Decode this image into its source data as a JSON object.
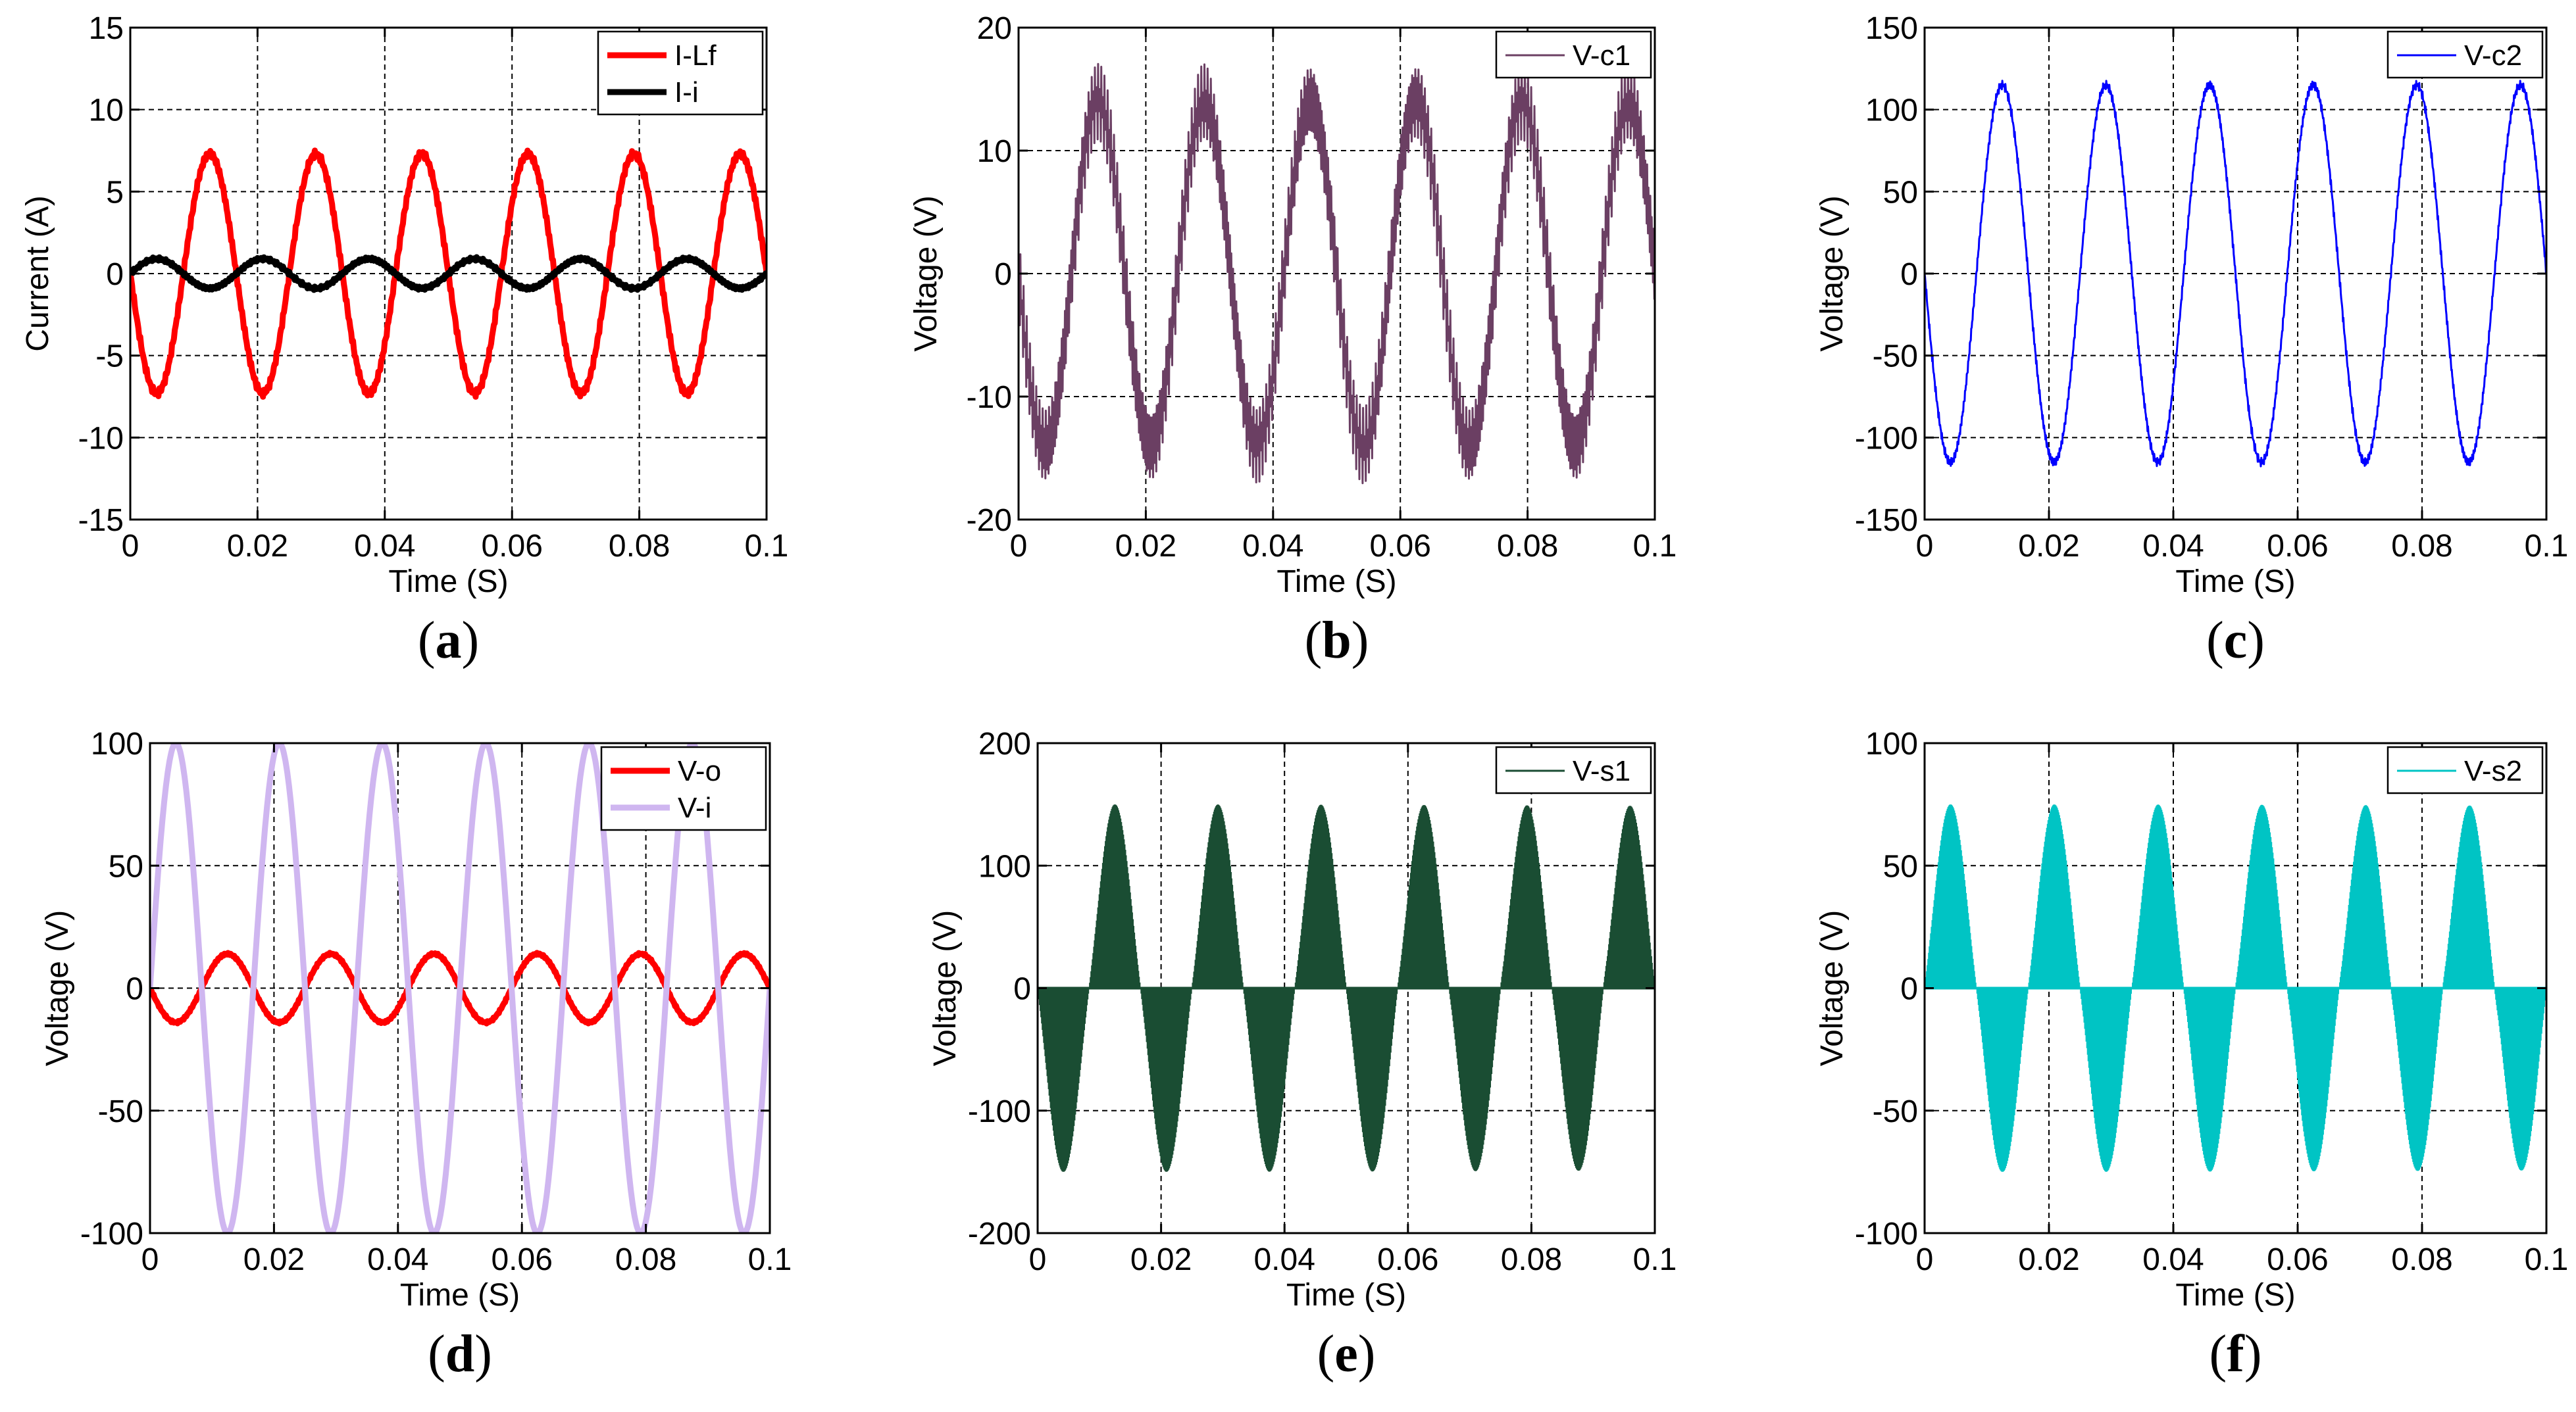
{
  "chart_data": [
    {
      "type": "line",
      "panel_label": "a",
      "xlabel": "Time (S)",
      "ylabel": "Current (A)",
      "xlim": [
        0,
        0.1
      ],
      "ylim": [
        -15,
        15
      ],
      "xticks": [
        0,
        0.02,
        0.04,
        0.06,
        0.08,
        0.1
      ],
      "xtick_labels": [
        "0",
        "0.02",
        "0.04",
        "0.06",
        "0.08",
        "0.1"
      ],
      "yticks": [
        -15,
        -10,
        -5,
        0,
        5,
        10,
        15
      ],
      "ytick_labels": [
        "-15",
        "-10",
        "-5",
        "0",
        "5",
        "10",
        "15"
      ],
      "grid": true,
      "legend_position": "top-right",
      "series": [
        {
          "name": "I-Lf",
          "color": "#ff0000",
          "amplitude": 7.3,
          "frequency_hz": 60,
          "phase_deg": 180,
          "ripple": 0.25
        },
        {
          "name": "I-i",
          "color": "#000000",
          "amplitude": 0.9,
          "frequency_hz": 60,
          "phase_deg": 0,
          "ripple": 0.12
        }
      ]
    },
    {
      "type": "line",
      "panel_label": "b",
      "xlabel": "Time (S)",
      "ylabel": "Voltage (V)",
      "xlim": [
        0,
        0.1
      ],
      "ylim": [
        -20,
        20
      ],
      "xticks": [
        0,
        0.02,
        0.04,
        0.06,
        0.08,
        0.1
      ],
      "xtick_labels": [
        "0",
        "0.02",
        "0.04",
        "0.06",
        "0.08",
        "0.1"
      ],
      "yticks": [
        -20,
        -10,
        0,
        10,
        20
      ],
      "ytick_labels": [
        "-20",
        "-10",
        "0",
        "10",
        "20"
      ],
      "grid": true,
      "legend_position": "top-right",
      "series": [
        {
          "name": "V-c1",
          "color": "#6b3f63",
          "amplitude": 14,
          "frequency_hz": 60,
          "phase_deg": 180,
          "ripple": 3.5
        }
      ]
    },
    {
      "type": "line",
      "panel_label": "c",
      "xlabel": "Time (S)",
      "ylabel": "Voltage (V)",
      "xlim": [
        0,
        0.1
      ],
      "ylim": [
        -150,
        150
      ],
      "xticks": [
        0,
        0.02,
        0.04,
        0.06,
        0.08,
        0.1
      ],
      "xtick_labels": [
        "0",
        "0.02",
        "0.04",
        "0.06",
        "0.08",
        "0.1"
      ],
      "yticks": [
        -150,
        -100,
        -50,
        0,
        50,
        100,
        150
      ],
      "ytick_labels": [
        "-150",
        "-100",
        "-50",
        "0",
        "50",
        "100",
        "150"
      ],
      "grid": true,
      "legend_position": "top-right",
      "series": [
        {
          "name": "V-c2",
          "color": "#0000ff",
          "amplitude": 115,
          "frequency_hz": 60,
          "phase_deg": 180,
          "ripple": 3
        }
      ]
    },
    {
      "type": "line",
      "panel_label": "d",
      "xlabel": "Time (S)",
      "ylabel": "Voltage (V)",
      "xlim": [
        0,
        0.1
      ],
      "ylim": [
        -100,
        100
      ],
      "xticks": [
        0,
        0.02,
        0.04,
        0.06,
        0.08,
        0.1
      ],
      "xtick_labels": [
        "0",
        "0.02",
        "0.04",
        "0.06",
        "0.08",
        "0.1"
      ],
      "yticks": [
        -100,
        -50,
        0,
        50,
        100
      ],
      "ytick_labels": [
        "-100",
        "-50",
        "0",
        "50",
        "100"
      ],
      "grid": true,
      "legend_position": "top-right",
      "series": [
        {
          "name": "V-o",
          "color": "#ff0000",
          "amplitude": 14,
          "frequency_hz": 60,
          "phase_deg": 180,
          "ripple": 0.5
        },
        {
          "name": "V-i",
          "color": "#cfb6f0",
          "amplitude": 100,
          "frequency_hz": 60,
          "phase_deg": 0,
          "ripple": 0
        }
      ]
    },
    {
      "type": "area",
      "panel_label": "e",
      "xlabel": "Time (S)",
      "ylabel": "Voltage (V)",
      "xlim": [
        0,
        0.1
      ],
      "ylim": [
        -200,
        200
      ],
      "xticks": [
        0,
        0.02,
        0.04,
        0.06,
        0.08,
        0.1
      ],
      "xtick_labels": [
        "0",
        "0.02",
        "0.04",
        "0.06",
        "0.08",
        "0.1"
      ],
      "yticks": [
        -200,
        -100,
        0,
        100,
        200
      ],
      "ytick_labels": [
        "-200",
        "-100",
        "0",
        "100",
        "200"
      ],
      "grid": true,
      "legend_position": "top-right",
      "series": [
        {
          "name": "V-s1",
          "color": "#1a4d33",
          "amplitude": 150,
          "frequency_hz": 60,
          "phase_deg": 180,
          "pwm_filled": true
        }
      ]
    },
    {
      "type": "area",
      "panel_label": "f",
      "xlabel": "Time (S)",
      "ylabel": "Voltage (V)",
      "xlim": [
        0,
        0.1
      ],
      "ylim": [
        -100,
        100
      ],
      "xticks": [
        0,
        0.02,
        0.04,
        0.06,
        0.08,
        0.1
      ],
      "xtick_labels": [
        "0",
        "0.02",
        "0.04",
        "0.06",
        "0.08",
        "0.1"
      ],
      "yticks": [
        -100,
        -50,
        0,
        50,
        100
      ],
      "ytick_labels": [
        "-100",
        "-50",
        "0",
        "50",
        "100"
      ],
      "grid": true,
      "legend_position": "top-right",
      "series": [
        {
          "name": "V-s2",
          "color": "#00c4c4",
          "amplitude": 75,
          "frequency_hz": 60,
          "phase_deg": 0,
          "pwm_filled": true
        }
      ]
    }
  ]
}
